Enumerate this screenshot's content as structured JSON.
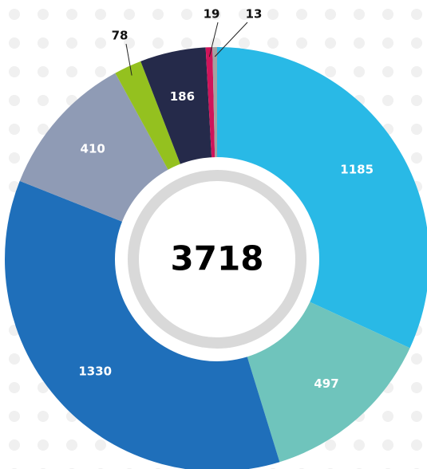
{
  "chart_data": {
    "type": "donut",
    "categories": [
      null,
      null,
      null,
      null,
      null,
      null,
      null,
      null
    ],
    "values": [
      1185,
      497,
      1330,
      410,
      78,
      186,
      19,
      13
    ],
    "colors": [
      "#29b9e6",
      "#6fc4bc",
      "#1f6fba",
      "#8f9bb5",
      "#94c11f",
      "#252a4a",
      "#d0145a",
      "#a3a3a3"
    ],
    "center_label": 3718
  }
}
